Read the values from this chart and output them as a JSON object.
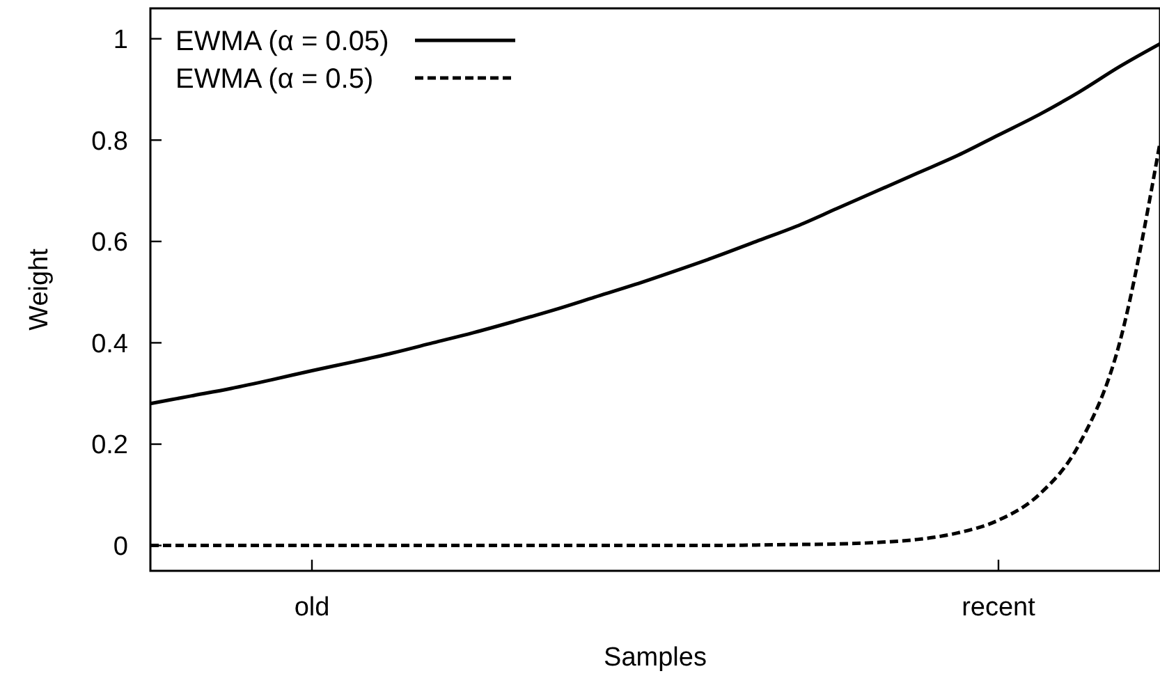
{
  "chart_data": {
    "type": "line",
    "xlabel": "Samples",
    "ylabel": "Weight",
    "categories": [
      null,
      null,
      null,
      null,
      "old",
      null,
      null,
      null,
      null,
      null,
      null,
      null,
      null,
      null,
      null,
      null,
      null,
      null,
      null,
      null,
      null,
      "recent",
      null,
      null,
      null,
      null
    ],
    "ylim": [
      -0.05,
      1.06
    ],
    "yticks": [
      0,
      0.2,
      0.4,
      0.6,
      0.8,
      1
    ],
    "grid": false,
    "legend": "top left",
    "marker": "none",
    "series": [
      {
        "name": "EWMA (α = 0.05)",
        "color": "#000000",
        "line_style": "solid",
        "values": [
          0.28,
          0.295,
          0.31,
          0.327,
          0.345,
          0.362,
          0.38,
          0.4,
          0.42,
          0.442,
          0.465,
          0.49,
          0.515,
          0.542,
          0.57,
          0.6,
          0.63,
          0.665,
          0.7,
          0.735,
          0.77,
          0.81,
          0.85,
          0.895,
          0.945,
          0.99
        ]
      },
      {
        "name": "EWMA (α = 0.5)",
        "color": "#000000",
        "line_style": "dashed",
        "values": [
          0,
          0,
          0,
          0,
          0,
          0,
          0,
          0,
          0,
          0,
          0,
          0,
          0,
          0,
          0,
          0.001,
          0.002,
          0.003,
          0.006,
          0.012,
          0.025,
          0.05,
          0.1,
          0.2,
          0.4,
          0.795
        ]
      }
    ]
  }
}
